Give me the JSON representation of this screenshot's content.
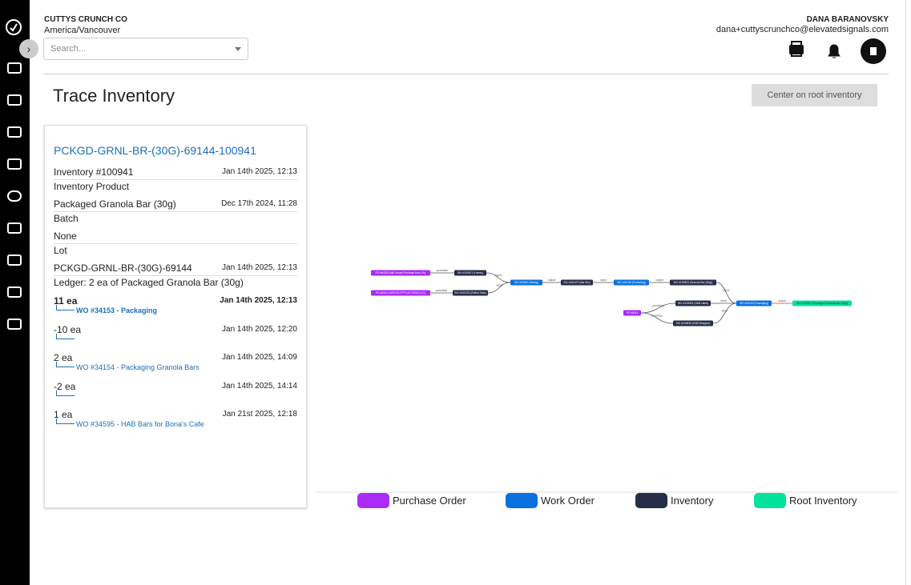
{
  "header": {
    "company": "CUTTYS CRUNCH CO",
    "timezone": "America/Vancouver",
    "search_placeholder": "Search...",
    "user_name": "DANA BARANOVSKY",
    "user_email": "dana+cuttyscrunchco@elevatedsignals.com"
  },
  "page": {
    "title": "Trace Inventory",
    "center_button": "Center on root inventory"
  },
  "card": {
    "title": "PCKGD-GRNL-BR-(30G)-69144-100941",
    "sections": [
      {
        "value": "Inventory #100941",
        "date": "Jan 14th 2025, 12:13",
        "label": "Inventory Product"
      },
      {
        "value": "Packaged Granola Bar (30g)",
        "date": "Dec 17th 2024, 11:28",
        "label": "Batch"
      },
      {
        "value": "None",
        "label": "Lot"
      },
      {
        "value": "PCKGD-GRNL-BR-(30G)-69144",
        "date": "Jan 14th 2025, 12:13",
        "label": "Ledger: 2 ea of Packaged Granola Bar (30g)"
      }
    ],
    "ledger": [
      {
        "qty": "11 ea",
        "date": "Jan 14th 2025, 12:13",
        "work_order": "WO #34153 - Packaging",
        "bold": true
      },
      {
        "qty": "-10 ea",
        "date": "Jan 14th 2025, 12:20"
      },
      {
        "qty": "2 ea",
        "date": "Jan 14th 2025, 14:09",
        "work_order": "WO #34154 - Packaging Granola Bars"
      },
      {
        "qty": "-2 ea",
        "date": "Jan 14th 2025, 14:14"
      },
      {
        "qty": "1 ea",
        "date": "Jan 21st 2025, 12:18",
        "work_order": "WO #34595 - HAB Bars for Bona's Cafe"
      }
    ]
  },
  "graph": {
    "nodes": [
      {
        "label": "PO #8438 (Bulk Honey Purchase from VN)",
        "kind": 0
      },
      {
        "label": "PO #8444 (OATS75-FPPLUS 2025-01-07)",
        "kind": 0
      },
      {
        "label": "INV #100671 (Honey)",
        "kind": 2
      },
      {
        "label": "INV #100232 (Rolled Oats)",
        "kind": 2
      },
      {
        "label": "WO #33822 (Mixing)",
        "kind": 1
      },
      {
        "label": "INV #100479 (Bar Mix)",
        "kind": 2
      },
      {
        "label": "WO #34135 (Portioning)",
        "kind": 1
      },
      {
        "label": "INV #100803 (Granola Bar (30g))",
        "kind": 2
      },
      {
        "label": "PO #8411",
        "kind": 0
      },
      {
        "label": "INV #100000 (HAB Label)",
        "kind": 2
      },
      {
        "label": "INV #100835 (HAB Wrapper)",
        "kind": 2
      },
      {
        "label": "WO #34153 (Packaging)",
        "kind": 1
      },
      {
        "label": "INV #100941 (Packaged Granola Bar (30g))",
        "kind": 3
      }
    ],
    "edges": [
      {
        "from": 0,
        "to": 2,
        "label": "purchase"
      },
      {
        "from": 1,
        "to": 3,
        "label": "purchase"
      },
      {
        "from": 2,
        "to": 4,
        "label": "input"
      },
      {
        "from": 3,
        "to": 4,
        "label": "input"
      },
      {
        "from": 4,
        "to": 5,
        "label": "output"
      },
      {
        "from": 5,
        "to": 6,
        "label": "input"
      },
      {
        "from": 6,
        "to": 7,
        "label": "output"
      },
      {
        "from": 7,
        "to": 11,
        "label": "input"
      },
      {
        "from": 8,
        "to": 9,
        "label": "purchase"
      },
      {
        "from": 8,
        "to": 10,
        "label": "purchase"
      },
      {
        "from": 9,
        "to": 11,
        "label": "input"
      },
      {
        "from": 10,
        "to": 11,
        "label": "input"
      },
      {
        "from": 11,
        "to": 12,
        "label": "output"
      }
    ]
  },
  "legend": [
    {
      "label": "Purchase Order",
      "color": "#a82cf6"
    },
    {
      "label": "Work Order",
      "color": "#0b70e0"
    },
    {
      "label": "Inventory",
      "color": "#262e48"
    },
    {
      "label": "Root Inventory",
      "color": "#05e29c"
    }
  ]
}
